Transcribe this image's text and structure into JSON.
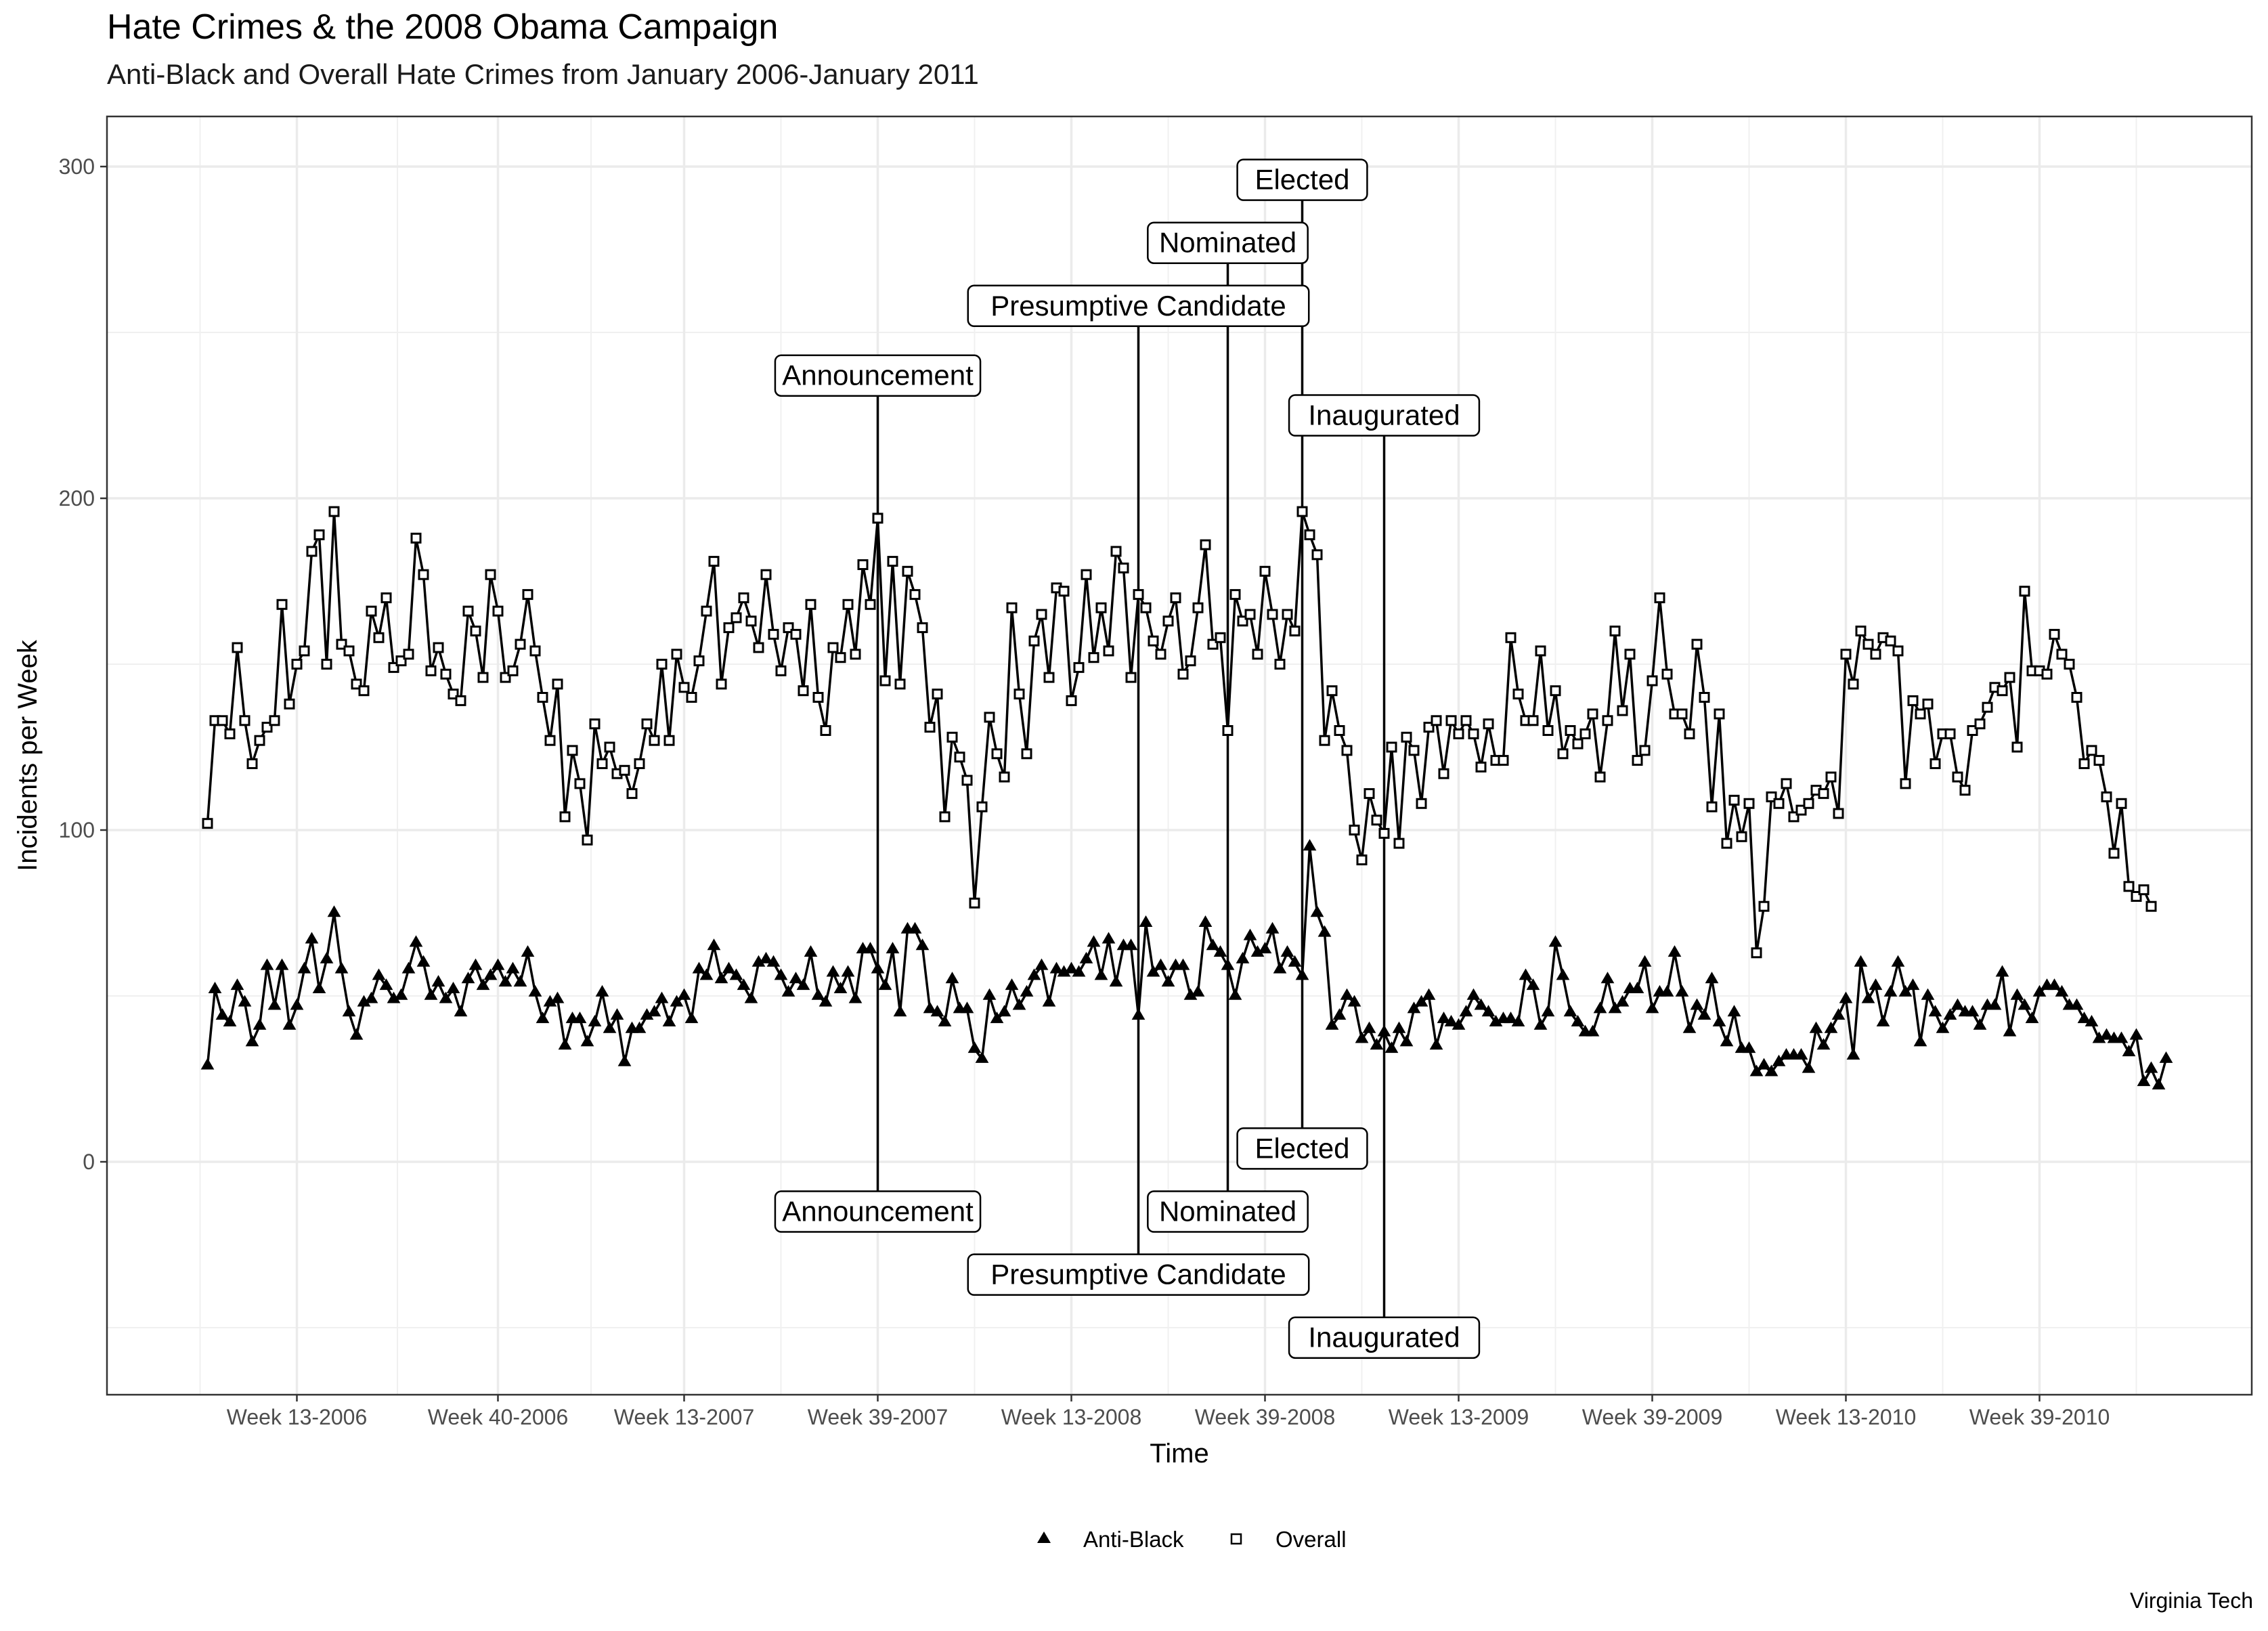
{
  "chart_data": {
    "type": "line",
    "title": "Hate Crimes & the 2008 Obama Campaign",
    "subtitle": "Anti-Black and Overall Hate Crimes from January 2006-January 2011",
    "xlabel": "Time",
    "ylabel": "Incidents per Week",
    "caption": "Virginia Tech",
    "ylim": [
      -70,
      300
    ],
    "y_ticks": [
      0,
      100,
      200,
      300
    ],
    "x_unit": "week index starting Week 1-2006",
    "x_range": [
      1,
      262
    ],
    "x_ticks": [
      {
        "x": 13,
        "label": "Week 13-2006"
      },
      {
        "x": 40,
        "label": "Week 40-2006"
      },
      {
        "x": 65,
        "label": "Week 13-2007"
      },
      {
        "x": 91,
        "label": "Week 39-2007"
      },
      {
        "x": 117,
        "label": "Week 13-2008"
      },
      {
        "x": 143,
        "label": "Week 39-2008"
      },
      {
        "x": 169,
        "label": "Week 13-2009"
      },
      {
        "x": 195,
        "label": "Week 39-2009"
      },
      {
        "x": 221,
        "label": "Week 13-2010"
      },
      {
        "x": 247,
        "label": "Week 39-2010"
      }
    ],
    "grid": true,
    "legend_position": "bottom",
    "series": [
      {
        "name": "Anti-Black",
        "marker": "triangle",
        "values": [
          29,
          52,
          44,
          42,
          53,
          48,
          36,
          41,
          59,
          47,
          59,
          41,
          47,
          58,
          67,
          52,
          61,
          75,
          58,
          45,
          38,
          48,
          49,
          56,
          53,
          49,
          50,
          58,
          66,
          60,
          50,
          54,
          49,
          52,
          45,
          55,
          59,
          53,
          56,
          59,
          54,
          58,
          54,
          63,
          51,
          43,
          48,
          49,
          35,
          43,
          43,
          36,
          42,
          51,
          40,
          44,
          30,
          40,
          40,
          44,
          45,
          49,
          42,
          48,
          50,
          43,
          58,
          56,
          65,
          55,
          58,
          56,
          53,
          49,
          60,
          61,
          60,
          56,
          51,
          55,
          53,
          63,
          50,
          48,
          57,
          52,
          57,
          49,
          64,
          64,
          58,
          53,
          64,
          45,
          70,
          70,
          65,
          46,
          45,
          42,
          55,
          46,
          46,
          34,
          31,
          50,
          43,
          45,
          53,
          47,
          51,
          56,
          59,
          48,
          58,
          57,
          58,
          57,
          61,
          66,
          56,
          67,
          54,
          65,
          65,
          44,
          72,
          57,
          59,
          54,
          59,
          59,
          50,
          51,
          72,
          65,
          63,
          59,
          50,
          61,
          68,
          63,
          64,
          70,
          58,
          63,
          60,
          56,
          95,
          75,
          69,
          41,
          44,
          50,
          48,
          37,
          40,
          35,
          39,
          34,
          40,
          36,
          46,
          48,
          50,
          35,
          43,
          42,
          41,
          45,
          50,
          47,
          45,
          42,
          43,
          43,
          42,
          56,
          53,
          41,
          45,
          66,
          56,
          45,
          42,
          39,
          39,
          46,
          55,
          46,
          48,
          52,
          52,
          60,
          46,
          51,
          51,
          63,
          51,
          40,
          47,
          44,
          55,
          42,
          36,
          45,
          34,
          34,
          27,
          29,
          27,
          30,
          32,
          32,
          32,
          28,
          40,
          35,
          40,
          44,
          49,
          32,
          60,
          49,
          53,
          42,
          51,
          60,
          51,
          53,
          36,
          50,
          45,
          40,
          44,
          47,
          45,
          45,
          41,
          47,
          47,
          57,
          39,
          50,
          47,
          43,
          51,
          53,
          53,
          51,
          47,
          47,
          43,
          42,
          37,
          38,
          37,
          37,
          33,
          38,
          24,
          28,
          23,
          31
        ]
      },
      {
        "name": "Overall",
        "marker": "square",
        "values": [
          102,
          133,
          133,
          129,
          155,
          133,
          120,
          127,
          131,
          133,
          168,
          138,
          150,
          154,
          184,
          189,
          150,
          196,
          156,
          154,
          144,
          142,
          166,
          158,
          170,
          149,
          151,
          153,
          188,
          177,
          148,
          155,
          147,
          141,
          139,
          166,
          160,
          146,
          177,
          166,
          146,
          148,
          156,
          171,
          154,
          140,
          127,
          144,
          104,
          124,
          114,
          97,
          132,
          120,
          125,
          117,
          118,
          111,
          120,
          132,
          127,
          150,
          127,
          153,
          143,
          140,
          151,
          166,
          181,
          144,
          161,
          164,
          170,
          163,
          155,
          177,
          159,
          148,
          161,
          159,
          142,
          168,
          140,
          130,
          155,
          152,
          168,
          153,
          180,
          168,
          194,
          145,
          181,
          144,
          178,
          171,
          161,
          131,
          141,
          104,
          128,
          122,
          115,
          78,
          107,
          134,
          123,
          116,
          167,
          141,
          123,
          157,
          165,
          146,
          173,
          172,
          139,
          149,
          177,
          152,
          167,
          154,
          184,
          179,
          146,
          171,
          167,
          157,
          153,
          163,
          170,
          147,
          151,
          167,
          186,
          156,
          158,
          130,
          171,
          163,
          165,
          153,
          178,
          165,
          150,
          165,
          160,
          196,
          189,
          183,
          127,
          142,
          130,
          124,
          100,
          91,
          111,
          103,
          99,
          125,
          96,
          128,
          124,
          108,
          131,
          133,
          117,
          133,
          129,
          133,
          129,
          119,
          132,
          121,
          121,
          158,
          141,
          133,
          133,
          154,
          130,
          142,
          123,
          130,
          126,
          129,
          135,
          116,
          133,
          160,
          136,
          153,
          121,
          124,
          145,
          170,
          147,
          135,
          135,
          129,
          156,
          140,
          107,
          135,
          96,
          109,
          98,
          108,
          63,
          77,
          110,
          108,
          114,
          104,
          106,
          108,
          112,
          111,
          116,
          105,
          153,
          144,
          160,
          156,
          153,
          158,
          157,
          154,
          114,
          139,
          135,
          138,
          120,
          129,
          129,
          116,
          112,
          130,
          132,
          137,
          143,
          142,
          146,
          125,
          172,
          148,
          148,
          147,
          159,
          153,
          150,
          140,
          120,
          124,
          121,
          110,
          93,
          108,
          83,
          80,
          82,
          77
        ]
      }
    ],
    "annotations": [
      {
        "label": "Announcement",
        "x": 91,
        "top_y": 237,
        "bottom_y": -15
      },
      {
        "label": "Presumptive Candidate",
        "x": 126,
        "top_y": 258,
        "bottom_y": -34
      },
      {
        "label": "Nominated",
        "x": 138,
        "top_y": 277,
        "bottom_y": -15
      },
      {
        "label": "Elected",
        "x": 148,
        "top_y": 296,
        "bottom_y": 4
      },
      {
        "label": "Inaugurated",
        "x": 159,
        "top_y": 225,
        "bottom_y": -53
      }
    ]
  }
}
